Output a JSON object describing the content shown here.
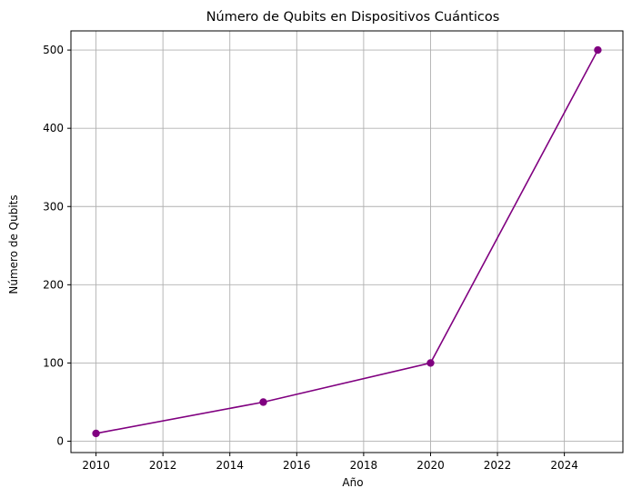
{
  "chart_data": {
    "type": "line",
    "title": "Número de Qubits en Dispositivos Cuánticos",
    "xlabel": "Año",
    "ylabel": "Número de Qubits",
    "x": [
      2010,
      2015,
      2020,
      2025
    ],
    "series": [
      {
        "values": [
          10,
          50,
          100,
          500
        ]
      }
    ],
    "xlim": [
      2009.25,
      2025.75
    ],
    "ylim": [
      -14.5,
      524.5
    ],
    "xticks": [
      2010,
      2012,
      2014,
      2016,
      2018,
      2020,
      2022,
      2024
    ],
    "yticks": [
      0,
      100,
      200,
      300,
      400,
      500
    ],
    "grid": true,
    "marker": "circle",
    "line_color": "#800080",
    "grid_color": "#b0b0b0"
  }
}
